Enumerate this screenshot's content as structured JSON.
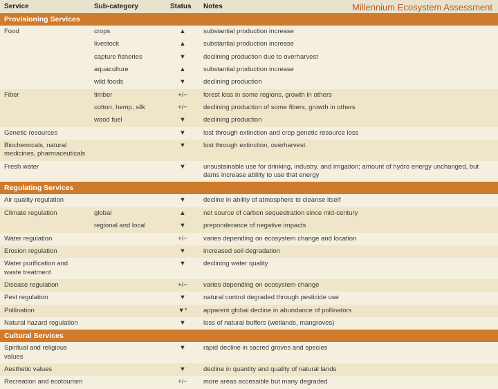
{
  "source_label": "Millennium Ecosystem Assessment",
  "columns": {
    "service": "Service",
    "sub": "Sub-category",
    "status": "Status",
    "notes": "Notes"
  },
  "colors": {
    "header_bg": "#e9e3ce",
    "section_bg": "#d07a2b",
    "section_text": "#ffffff",
    "row_even": "#f4efdf",
    "row_odd": "#efe6c9",
    "source_text": "#b55a1e"
  },
  "symbols": {
    "up": "▲",
    "down": "▼",
    "mixed": "+/−",
    "down_star": "▼*"
  },
  "sections": [
    {
      "title": "Provisioning Services",
      "rows": [
        {
          "service": "Food",
          "sub": "crops",
          "status": "▲",
          "notes": "substantial production increase"
        },
        {
          "service": "",
          "sub": "livestock",
          "status": "▲",
          "notes": "substantial production increase"
        },
        {
          "service": "",
          "sub": "capture fisheries",
          "status": "▼",
          "notes": "declining production due to overharvest"
        },
        {
          "service": "",
          "sub": "aquaculture",
          "status": "▲",
          "notes": "substantial production increase"
        },
        {
          "service": "",
          "sub": "wild foods",
          "status": "▼",
          "notes": "declining production"
        },
        {
          "service": "Fiber",
          "sub": "timber",
          "status": "+/−",
          "notes": "forest loss in some regions, growth in others"
        },
        {
          "service": "",
          "sub": "cotton, hemp, silk",
          "status": "+/−",
          "notes": "declining production of some fibers, growth in others"
        },
        {
          "service": "",
          "sub": "wood fuel",
          "status": "▼",
          "notes": "declining production"
        },
        {
          "service": "Genetic resources",
          "sub": "",
          "status": "▼",
          "notes": "lost through extinction and crop genetic resource loss"
        },
        {
          "service": "Biochemicals, natural medicines, pharmaceuticals",
          "sub": "",
          "status": "▼",
          "notes": "lost through extinction, overharvest"
        },
        {
          "service": "Fresh water",
          "sub": "",
          "status": "▼",
          "notes": "unsustainable use for drinking, industry, and irrigation; amount of hydro energy unchanged, but dams increase ability to use that energy"
        }
      ]
    },
    {
      "title": "Regulating Services",
      "rows": [
        {
          "service": "Air quality regulation",
          "sub": "",
          "status": "▼",
          "notes": "decline in ability of atmosphere to cleanse itself"
        },
        {
          "service": "Climate regulation",
          "sub": "global",
          "status": "▲",
          "notes": "net source of carbon sequestration since mid-century"
        },
        {
          "service": "",
          "sub": "regional and local",
          "status": "▼",
          "notes": "preponderance of negative impacts"
        },
        {
          "service": "Water regulation",
          "sub": "",
          "status": "+/−",
          "notes": "varies depending on ecosystem change and location"
        },
        {
          "service": "Erosion regulation",
          "sub": "",
          "status": "▼",
          "notes": "increased soil degradation"
        },
        {
          "service": "Water purification and waste treatment",
          "sub": "",
          "status": "▼",
          "notes": "declining water quality"
        },
        {
          "service": "Disease regulation",
          "sub": "",
          "status": "+/−",
          "notes": "varies depending on ecosystem change"
        },
        {
          "service": "Pest regulation",
          "sub": "",
          "status": "▼",
          "notes": "natural control degraded through pesticide use"
        },
        {
          "service": "Pollination",
          "sub": "",
          "status": "▼*",
          "notes": "apparent global decline in abundance of pollinators"
        },
        {
          "service": "Natural hazard regulation",
          "sub": "",
          "status": "▼",
          "notes": "loss of natural buffers (wetlands, mangroves)"
        }
      ]
    },
    {
      "title": "Cultural Services",
      "rows": [
        {
          "service": "Spiritual and religious values",
          "sub": "",
          "status": "▼",
          "notes": "rapid decline in sacred groves and species"
        },
        {
          "service": "Aesthetic values",
          "sub": "",
          "status": "▼",
          "notes": "decline in quantity and quality of natural lands"
        },
        {
          "service": "Recreation and ecotourism",
          "sub": "",
          "status": "+/−",
          "notes": "more areas accessible but many degraded"
        }
      ]
    }
  ]
}
